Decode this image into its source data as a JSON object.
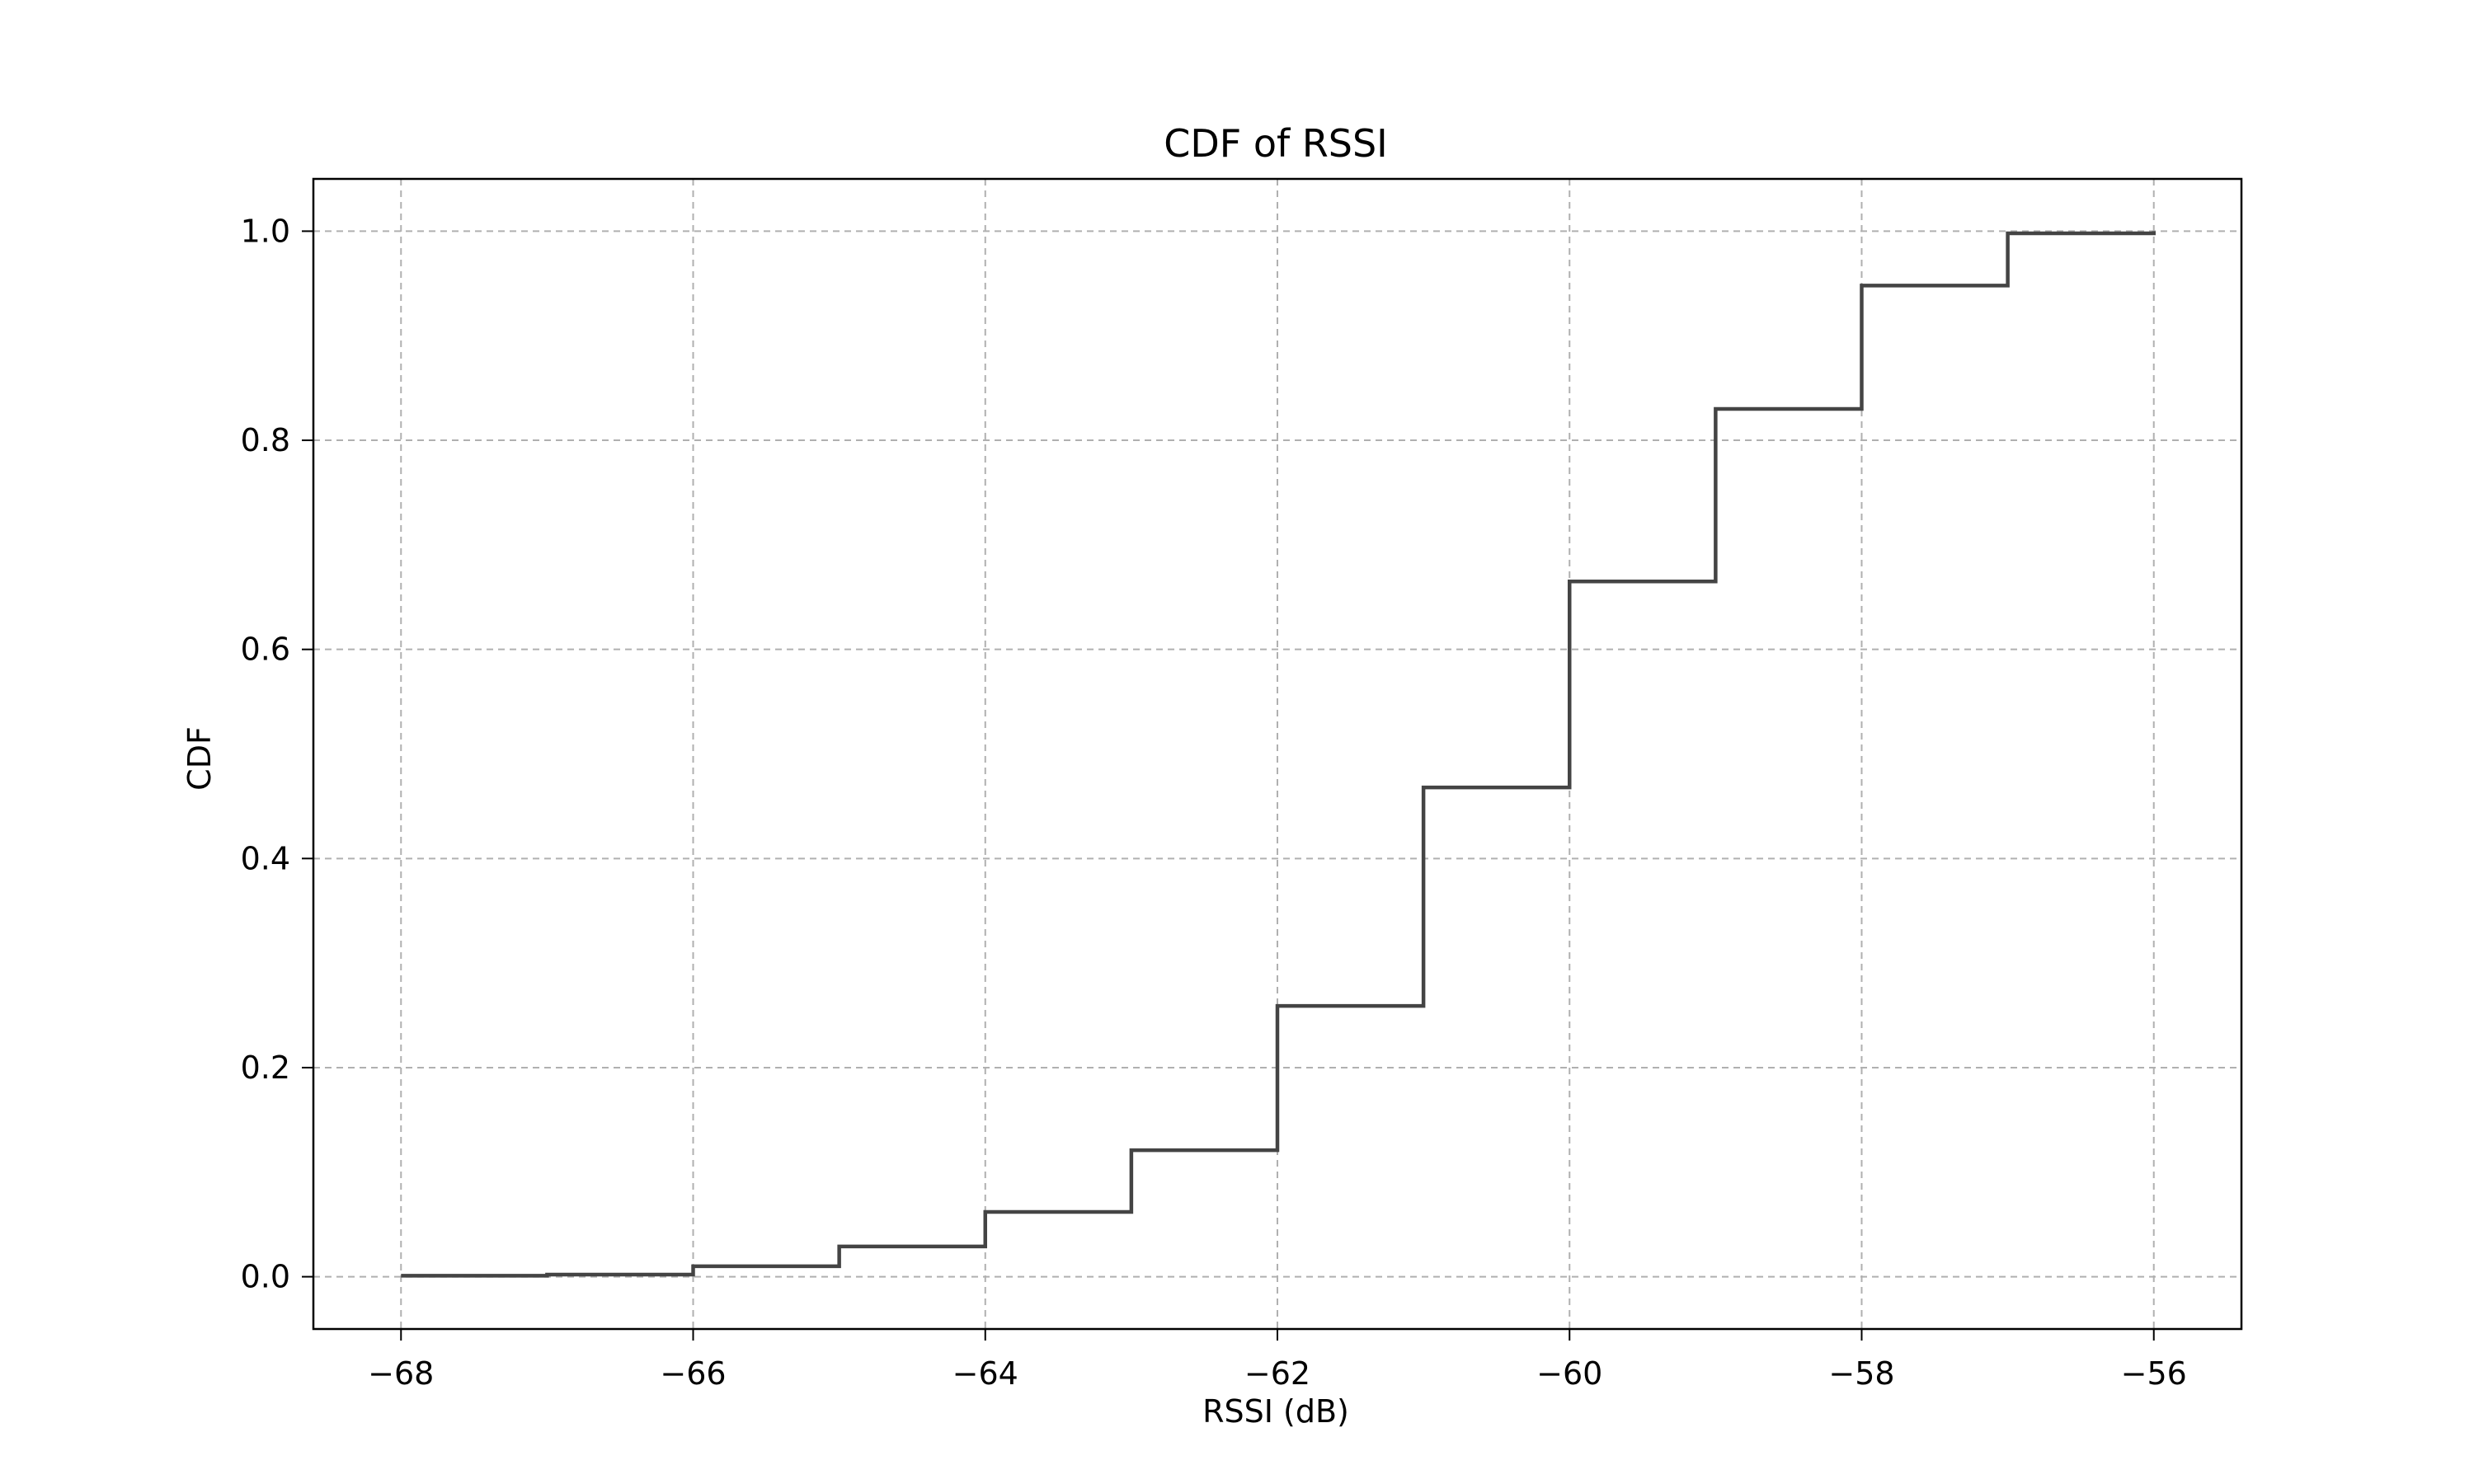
{
  "chart_data": {
    "type": "line",
    "step": true,
    "title": "CDF of RSSI",
    "xlabel": "RSSI (dB)",
    "ylabel": "CDF",
    "xlim": [
      -68.6,
      -55.4
    ],
    "ylim": [
      -0.05,
      1.05
    ],
    "xticks": [
      -68,
      -66,
      -64,
      -62,
      -60,
      -58,
      -56
    ],
    "xtick_labels": [
      "−68",
      "−66",
      "−64",
      "−62",
      "−60",
      "−58",
      "−56"
    ],
    "yticks": [
      0.0,
      0.2,
      0.4,
      0.6,
      0.8,
      1.0
    ],
    "ytick_labels": [
      "0.0",
      "0.2",
      "0.4",
      "0.6",
      "0.8",
      "1.0"
    ],
    "grid": true,
    "line_color": "#444444",
    "series": [
      {
        "x": [
          -68,
          -67,
          -66,
          -65,
          -64,
          -63,
          -62,
          -61,
          -60,
          -59,
          -58,
          -57,
          -56
        ],
        "y": [
          0.001,
          0.002,
          0.01,
          0.029,
          0.062,
          0.121,
          0.259,
          0.468,
          0.665,
          0.83,
          0.948,
          0.998,
          1.0
        ]
      }
    ]
  }
}
